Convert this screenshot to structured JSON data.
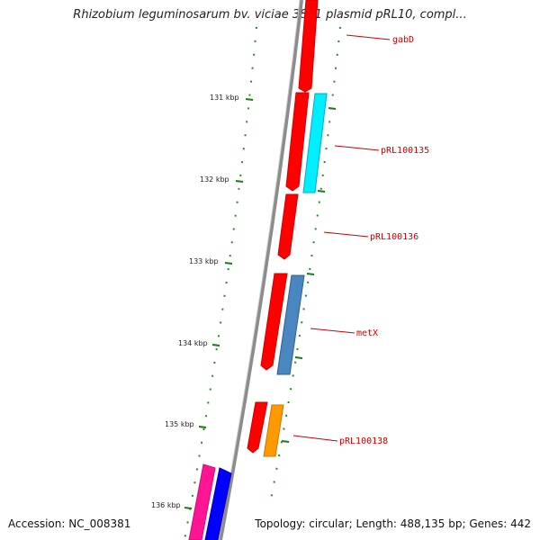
{
  "header": {
    "title": "Rhizobium leguminosarum bv. viciae 3841 plasmid pRL10, compl..."
  },
  "footer": {
    "accession": "Accession: NC_008381",
    "stats": "Topology: circular; Length: 488,135 bp; Genes: 442"
  },
  "ticks": [
    "131 kbp",
    "132 kbp",
    "133 kbp",
    "134 kbp",
    "135 kbp",
    "136 kbp"
  ],
  "gene_labels": [
    "gabD",
    "pRL100135",
    "pRL100136",
    "metX",
    "pRL100138"
  ],
  "colors": {
    "backbone": "#808080",
    "tick": "#117711",
    "forward_gene": "#ff0000",
    "cyan_gene": "#00eeff",
    "steelblue_gene": "#4a86c0",
    "orange_gene": "#ff9900",
    "pink_gene": "#ff1493",
    "blue_gene": "#0000ff",
    "label": "#cc0000"
  }
}
